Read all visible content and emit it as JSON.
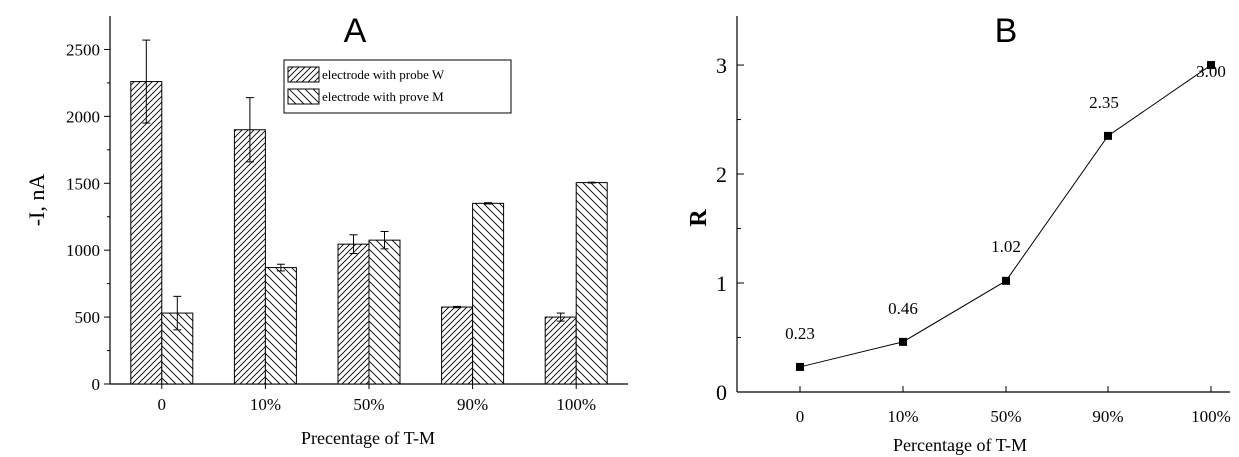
{
  "chart_data": [
    {
      "panel": "A",
      "type": "bar",
      "ylabel": "-I, nA",
      "xlabel": "Precentage of  T-M",
      "categories": [
        "0",
        "10%",
        "50%",
        "90%",
        "100%"
      ],
      "ylim": [
        0,
        2750
      ],
      "yticks": [
        0,
        500,
        1000,
        1500,
        2000,
        2500
      ],
      "legend_position": "top-right",
      "series": [
        {
          "name": "electrode with probe W",
          "pattern": "hatch-right",
          "values": [
            2260,
            1900,
            1045,
            575,
            500
          ],
          "errors": [
            310,
            240,
            70,
            5,
            30
          ]
        },
        {
          "name": "electrode with prove M",
          "pattern": "hatch-left",
          "values": [
            530,
            870,
            1075,
            1350,
            1505
          ],
          "errors": [
            125,
            25,
            65,
            5,
            3
          ]
        }
      ]
    },
    {
      "panel": "B",
      "type": "line",
      "ylabel": "R",
      "xlabel": "Percentage of  T-M",
      "categories": [
        "0",
        "10%",
        "50%",
        "90%",
        "100%"
      ],
      "ylim": [
        0,
        3.45
      ],
      "yticks": [
        0,
        1,
        2,
        3
      ],
      "series": [
        {
          "values": [
            0.23,
            0.46,
            1.02,
            2.35,
            3.0
          ],
          "labels": [
            "0.23",
            "0.46",
            "1.02",
            "2.35",
            "3.00"
          ]
        }
      ]
    }
  ]
}
